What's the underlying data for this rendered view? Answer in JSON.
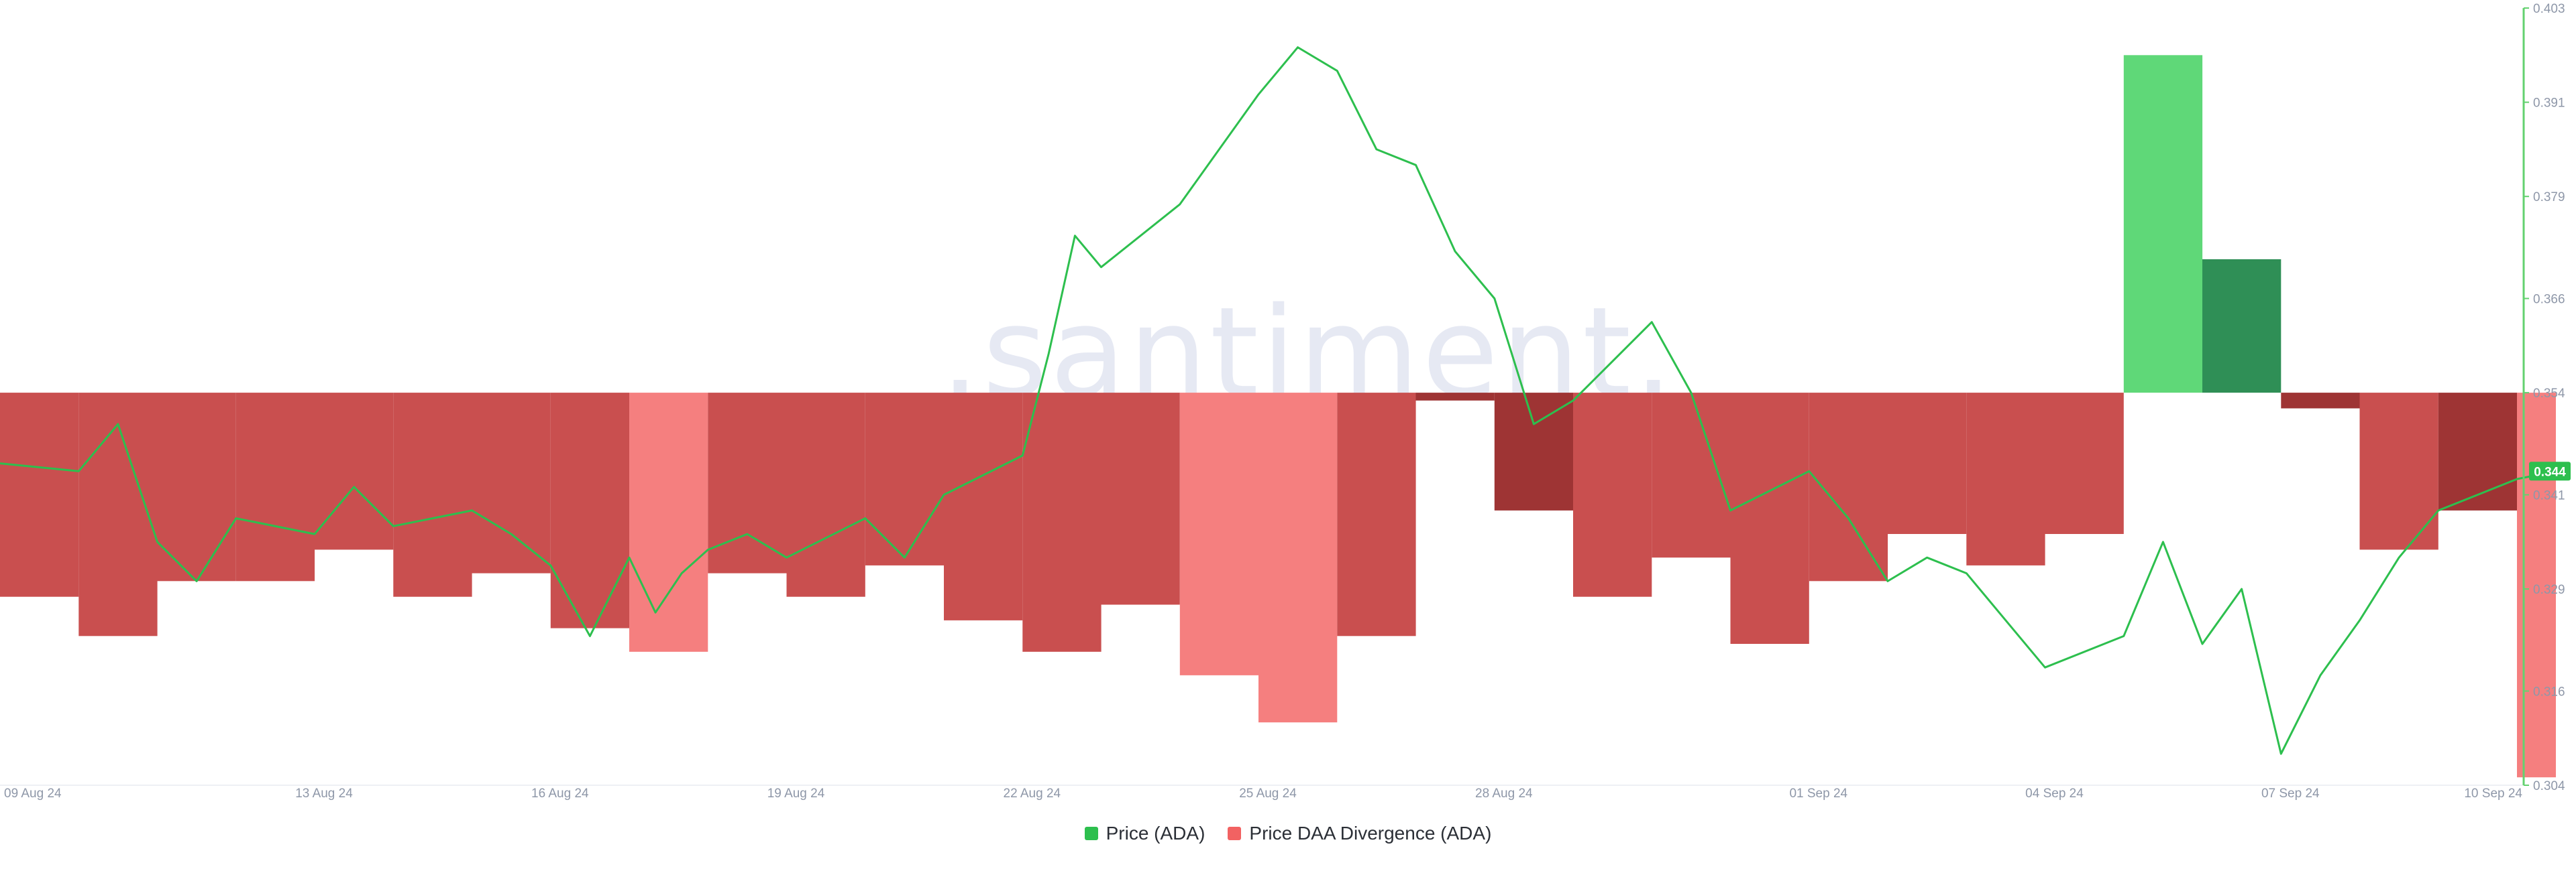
{
  "watermark": ".santiment.",
  "colors": {
    "price_line": "#2dbf4e",
    "div_neg": "#c94f4f",
    "div_neg_light": "#f57f7f",
    "div_neg_dark": "#9e3434",
    "div_pos": "#5fd878",
    "div_pos_dark": "#2f8f56",
    "axis_line": "#63d16f",
    "price_badge": "#2dbf4e"
  },
  "chart_data": {
    "type": "line",
    "x_ticks": [
      "09 Aug 24",
      "13 Aug 24",
      "16 Aug 24",
      "19 Aug 24",
      "22 Aug 24",
      "25 Aug 24",
      "28 Aug 24",
      "01 Sep 24",
      "04 Sep 24",
      "07 Sep 24",
      "10 Sep 24"
    ],
    "y_ticks": [
      "0.304",
      "0.316",
      "0.329",
      "0.341",
      "0.354",
      "0.366",
      "0.379",
      "0.391",
      "0.403"
    ],
    "ylim": [
      0.304,
      0.403
    ],
    "xlim": [
      "2024-08-09",
      "2024-09-10"
    ],
    "current_price_label": "0.344",
    "legend": [
      {
        "name": "Price (ADA)",
        "color": "#2dbf4e"
      },
      {
        "name": "Price DAA Divergence (ADA)",
        "color": "#f26262"
      }
    ],
    "series": [
      {
        "name": "Price (ADA)",
        "type": "line",
        "points": [
          [
            "2024-08-09",
            0.345
          ],
          [
            "2024-08-10",
            0.344
          ],
          [
            "2024-08-10",
            0.35
          ],
          [
            "2024-08-11",
            0.335
          ],
          [
            "2024-08-11",
            0.33
          ],
          [
            "2024-08-12",
            0.338
          ],
          [
            "2024-08-13",
            0.336
          ],
          [
            "2024-08-13",
            0.342
          ],
          [
            "2024-08-14",
            0.337
          ],
          [
            "2024-08-15",
            0.339
          ],
          [
            "2024-08-15",
            0.336
          ],
          [
            "2024-08-16",
            0.332
          ],
          [
            "2024-08-16",
            0.323
          ],
          [
            "2024-08-17",
            0.333
          ],
          [
            "2024-08-17",
            0.326
          ],
          [
            "2024-08-17",
            0.331
          ],
          [
            "2024-08-18",
            0.334
          ],
          [
            "2024-08-18",
            0.336
          ],
          [
            "2024-08-19",
            0.333
          ],
          [
            "2024-08-20",
            0.338
          ],
          [
            "2024-08-20",
            0.333
          ],
          [
            "2024-08-21",
            0.341
          ],
          [
            "2024-08-22",
            0.346
          ],
          [
            "2024-08-22",
            0.359
          ],
          [
            "2024-08-22",
            0.374
          ],
          [
            "2024-08-23",
            0.37
          ],
          [
            "2024-08-24",
            0.378
          ],
          [
            "2024-08-24",
            0.385
          ],
          [
            "2024-08-25",
            0.392
          ],
          [
            "2024-08-25",
            0.398
          ],
          [
            "2024-08-26",
            0.395
          ],
          [
            "2024-08-26",
            0.385
          ],
          [
            "2024-08-27",
            0.383
          ],
          [
            "2024-08-27",
            0.372
          ],
          [
            "2024-08-28",
            0.366
          ],
          [
            "2024-08-28",
            0.35
          ],
          [
            "2024-08-29",
            0.353
          ],
          [
            "2024-08-30",
            0.363
          ],
          [
            "2024-08-30",
            0.354
          ],
          [
            "2024-08-31",
            0.339
          ],
          [
            "2024-09-01",
            0.344
          ],
          [
            "2024-09-01",
            0.338
          ],
          [
            "2024-09-02",
            0.33
          ],
          [
            "2024-09-02",
            0.333
          ],
          [
            "2024-09-03",
            0.331
          ],
          [
            "2024-09-03",
            0.325
          ],
          [
            "2024-09-04",
            0.319
          ],
          [
            "2024-09-05",
            0.323
          ],
          [
            "2024-09-05",
            0.335
          ],
          [
            "2024-09-06",
            0.322
          ],
          [
            "2024-09-06",
            0.329
          ],
          [
            "2024-09-07",
            0.308
          ],
          [
            "2024-09-07",
            0.318
          ],
          [
            "2024-09-08",
            0.325
          ],
          [
            "2024-09-08",
            0.333
          ],
          [
            "2024-09-09",
            0.339
          ],
          [
            "2024-09-09",
            0.341
          ],
          [
            "2024-09-10",
            0.343
          ],
          [
            "2024-09-10",
            0.344
          ]
        ]
      },
      {
        "name": "Price DAA Divergence (ADA)",
        "type": "bar",
        "bars": [
          {
            "start": "2024-08-09",
            "end": "2024-08-10",
            "value": -0.026,
            "tone": "neg"
          },
          {
            "start": "2024-08-10",
            "end": "2024-08-11",
            "value": -0.031,
            "tone": "neg"
          },
          {
            "start": "2024-08-11",
            "end": "2024-08-12",
            "value": -0.024,
            "tone": "neg"
          },
          {
            "start": "2024-08-12",
            "end": "2024-08-13",
            "value": -0.024,
            "tone": "neg"
          },
          {
            "start": "2024-08-13",
            "end": "2024-08-14",
            "value": -0.02,
            "tone": "neg"
          },
          {
            "start": "2024-08-14",
            "end": "2024-08-15",
            "value": -0.026,
            "tone": "neg"
          },
          {
            "start": "2024-08-15",
            "end": "2024-08-16",
            "value": -0.023,
            "tone": "neg"
          },
          {
            "start": "2024-08-16",
            "end": "2024-08-17",
            "value": -0.03,
            "tone": "neg"
          },
          {
            "start": "2024-08-17",
            "end": "2024-08-18",
            "value": -0.033,
            "tone": "neg_light"
          },
          {
            "start": "2024-08-18",
            "end": "2024-08-19",
            "value": -0.023,
            "tone": "neg"
          },
          {
            "start": "2024-08-19",
            "end": "2024-08-20",
            "value": -0.026,
            "tone": "neg"
          },
          {
            "start": "2024-08-20",
            "end": "2024-08-21",
            "value": -0.022,
            "tone": "neg"
          },
          {
            "start": "2024-08-21",
            "end": "2024-08-22",
            "value": -0.029,
            "tone": "neg"
          },
          {
            "start": "2024-08-22",
            "end": "2024-08-23",
            "value": -0.033,
            "tone": "neg"
          },
          {
            "start": "2024-08-23",
            "end": "2024-08-24",
            "value": -0.027,
            "tone": "neg"
          },
          {
            "start": "2024-08-24",
            "end": "2024-08-25",
            "value": -0.036,
            "tone": "neg_light"
          },
          {
            "start": "2024-08-25",
            "end": "2024-08-26",
            "value": -0.042,
            "tone": "neg_light"
          },
          {
            "start": "2024-08-26",
            "end": "2024-08-27",
            "value": -0.031,
            "tone": "neg"
          },
          {
            "start": "2024-08-27",
            "end": "2024-08-28",
            "value": -0.001,
            "tone": "neg_dark"
          },
          {
            "start": "2024-08-28",
            "end": "2024-08-29",
            "value": -0.015,
            "tone": "neg_dark"
          },
          {
            "start": "2024-08-29",
            "end": "2024-08-30",
            "value": -0.026,
            "tone": "neg"
          },
          {
            "start": "2024-08-30",
            "end": "2024-08-31",
            "value": -0.021,
            "tone": "neg"
          },
          {
            "start": "2024-08-31",
            "end": "2024-09-01",
            "value": -0.032,
            "tone": "neg"
          },
          {
            "start": "2024-09-01",
            "end": "2024-09-02",
            "value": -0.024,
            "tone": "neg"
          },
          {
            "start": "2024-09-02",
            "end": "2024-09-03",
            "value": -0.018,
            "tone": "neg"
          },
          {
            "start": "2024-09-03",
            "end": "2024-09-04",
            "value": -0.022,
            "tone": "neg"
          },
          {
            "start": "2024-09-04",
            "end": "2024-09-05",
            "value": -0.018,
            "tone": "neg"
          },
          {
            "start": "2024-09-05",
            "end": "2024-09-06",
            "value": 0.043,
            "tone": "pos"
          },
          {
            "start": "2024-09-06",
            "end": "2024-09-07",
            "value": 0.017,
            "tone": "pos_dark"
          },
          {
            "start": "2024-09-07",
            "end": "2024-09-08",
            "value": -0.002,
            "tone": "neg_dark"
          },
          {
            "start": "2024-09-08",
            "end": "2024-09-09",
            "value": -0.02,
            "tone": "neg"
          },
          {
            "start": "2024-09-09",
            "end": "2024-09-10",
            "value": -0.015,
            "tone": "neg_dark"
          },
          {
            "start": "2024-09-10",
            "end": "2024-09-10",
            "value": -0.049,
            "tone": "neg_light"
          }
        ]
      }
    ],
    "grid": false,
    "legend_position": "bottom-center",
    "y_axis_position": "right"
  }
}
